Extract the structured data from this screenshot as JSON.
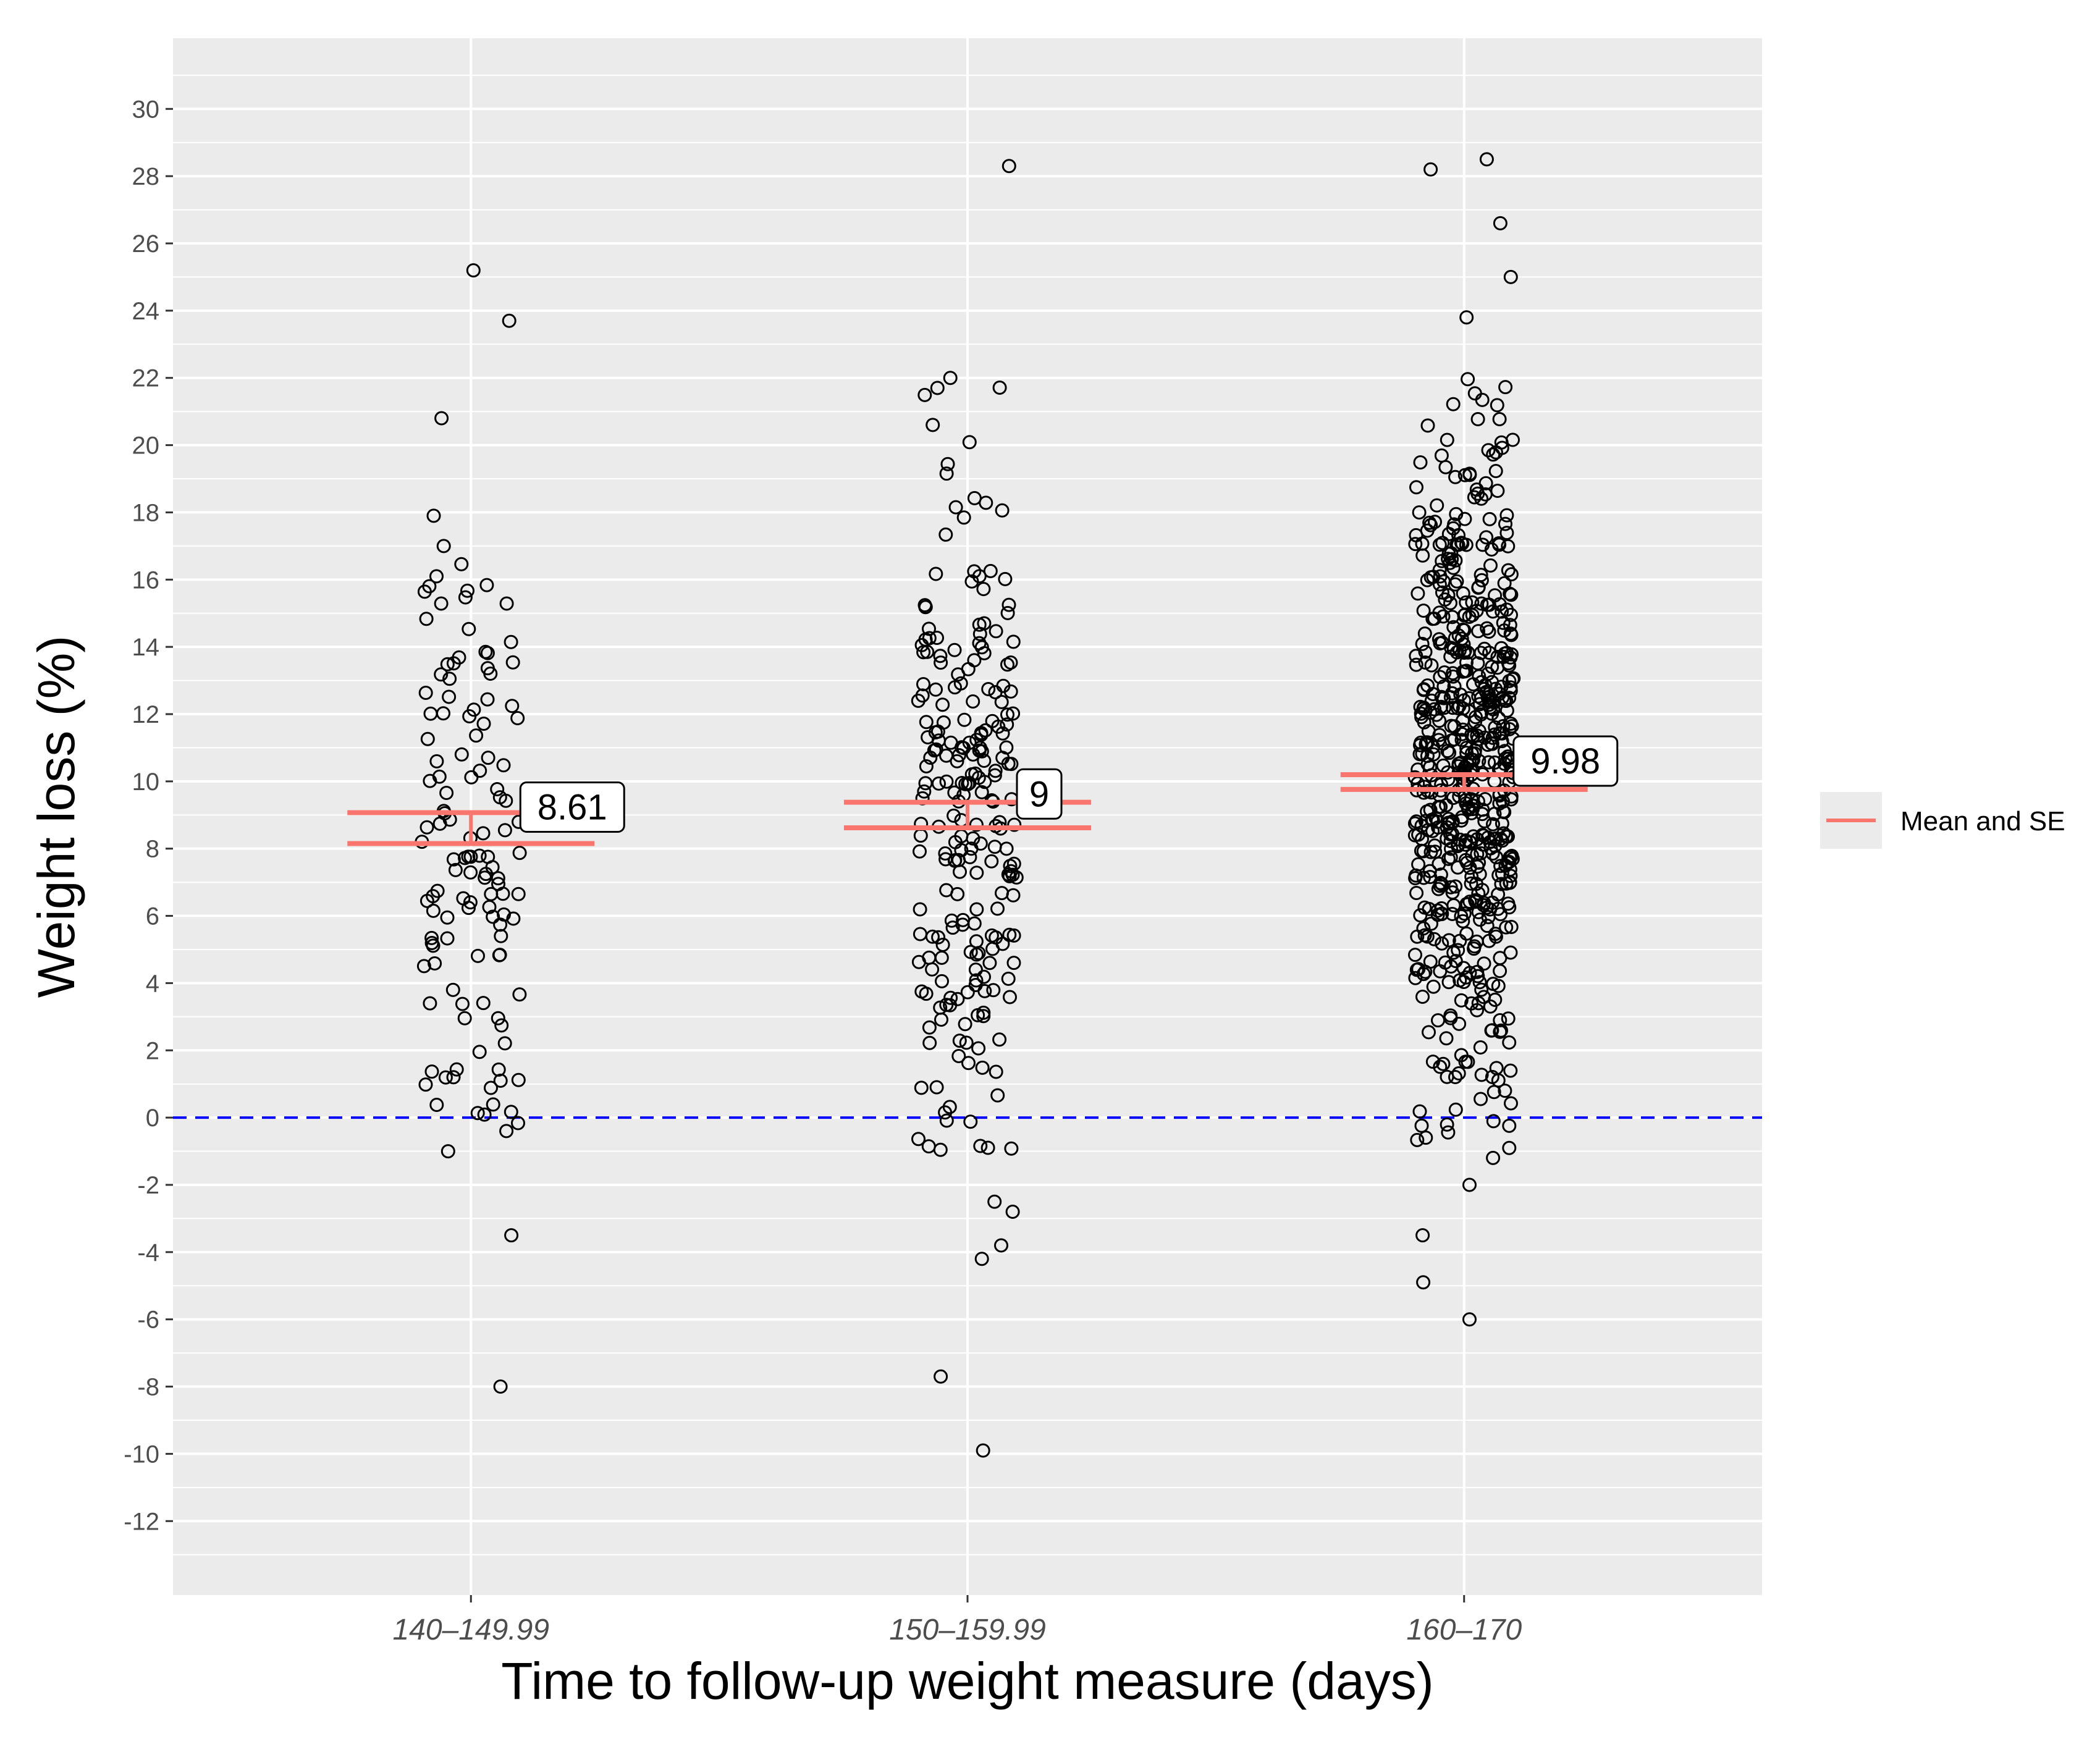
{
  "chart_data": {
    "type": "scatter",
    "title": "",
    "xlabel": "Time to follow-up weight measure (days)",
    "ylabel": "Weight loss (%)",
    "categories": [
      "140–149.99",
      "150–159.99",
      "160–170"
    ],
    "ylim": [
      -14.2,
      32.1
    ],
    "yticks": [
      -12,
      -10,
      -8,
      -6,
      -4,
      -2,
      0,
      2,
      4,
      6,
      8,
      10,
      12,
      14,
      16,
      18,
      20,
      22,
      24,
      26,
      28,
      30
    ],
    "reference_line": {
      "y": 0,
      "color": "#0000ff",
      "style": "dashed"
    },
    "summary": [
      {
        "category": "140–149.99",
        "mean": 8.61,
        "se_lower": 8.15,
        "se_upper": 9.07,
        "label": "8.61"
      },
      {
        "category": "150–159.99",
        "mean": 9.0,
        "se_lower": 8.62,
        "se_upper": 9.38,
        "label": "9"
      },
      {
        "category": "160–170",
        "mean": 9.98,
        "se_lower": 9.76,
        "se_upper": 10.2,
        "label": "9.98"
      }
    ],
    "series": [
      {
        "category": "140–149.99",
        "n": 130,
        "visible_extremes": [
          25.2,
          23.7,
          20.8,
          17.9,
          17.0,
          -3.5,
          -8.0,
          -1.0,
          1.2,
          -0.4
        ]
      },
      {
        "category": "150–159.99",
        "n": 240,
        "visible_extremes": [
          28.3,
          22.0,
          21.7,
          20.6,
          -2.5,
          -2.8,
          -3.8,
          -4.2,
          -7.7,
          -9.9
        ]
      },
      {
        "category": "160–170",
        "n": 640,
        "visible_extremes": [
          28.5,
          28.2,
          26.6,
          25.0,
          23.8,
          -1.2,
          -2.0,
          -3.5,
          -4.9,
          -6.0
        ]
      }
    ],
    "legend": {
      "label": "Mean and SE",
      "position": "right",
      "color": "#f8766d"
    },
    "colors": {
      "panel": "#ebebeb",
      "grid": "#ffffff",
      "points": "#000000",
      "mean_se": "#f8766d"
    }
  }
}
